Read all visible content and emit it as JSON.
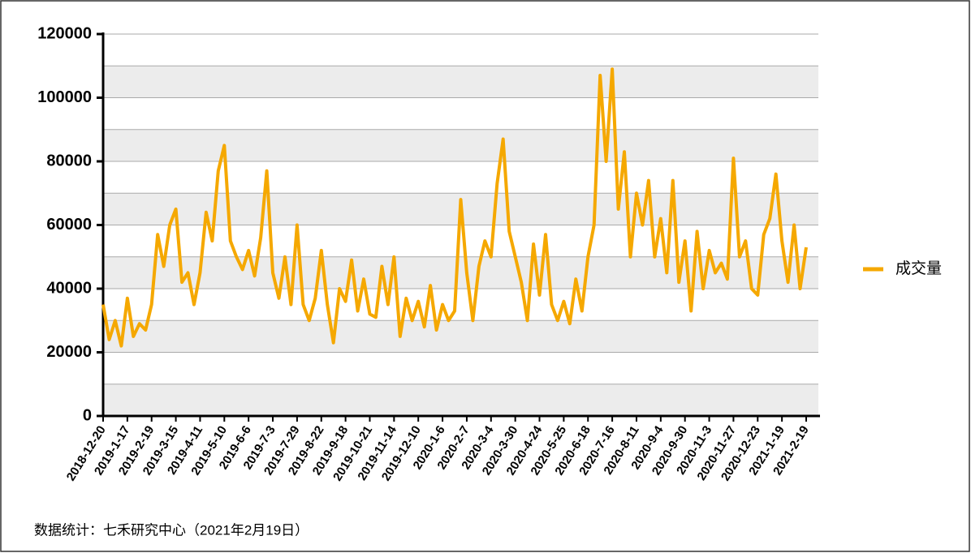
{
  "chart_data": {
    "type": "line",
    "categories": [
      "2018-12-20",
      null,
      null,
      null,
      "2019-1-17",
      null,
      null,
      null,
      "2019-2-19",
      null,
      null,
      null,
      "2019-3-15",
      null,
      null,
      null,
      "2019-4-11",
      null,
      null,
      null,
      "2019-5-10",
      null,
      null,
      null,
      "2019-6-6",
      null,
      null,
      null,
      "2019-7-3",
      null,
      null,
      null,
      "2019-7-29",
      null,
      null,
      null,
      "2019-8-22",
      null,
      null,
      null,
      "2019-9-18",
      null,
      null,
      null,
      "2019-10-21",
      null,
      null,
      null,
      "2019-11-14",
      null,
      null,
      null,
      "2019-12-10",
      null,
      null,
      null,
      "2020-1-6",
      null,
      null,
      null,
      "2020-2-7",
      null,
      null,
      null,
      "2020-3-4",
      null,
      null,
      null,
      "2020-3-30",
      null,
      null,
      null,
      "2020-4-24",
      null,
      null,
      null,
      "2020-5-25",
      null,
      null,
      null,
      "2020-6-18",
      null,
      null,
      null,
      "2020-7-16",
      null,
      null,
      null,
      "2020-8-11",
      null,
      null,
      null,
      "2020-9-4",
      null,
      null,
      null,
      "2020-9-30",
      null,
      null,
      null,
      "2020-11-3",
      null,
      null,
      null,
      "2020-11-27",
      null,
      null,
      null,
      "2020-12-23",
      null,
      null,
      null,
      "2021-1-19",
      null,
      null,
      null,
      "2021-2-19"
    ],
    "series": [
      {
        "name": "成交量",
        "color": "#f5a800",
        "values": [
          35000,
          24000,
          30000,
          22000,
          37000,
          25000,
          29000,
          27000,
          35000,
          57000,
          47000,
          60000,
          65000,
          42000,
          45000,
          35000,
          45000,
          64000,
          55000,
          77000,
          85000,
          55000,
          50000,
          46000,
          52000,
          44000,
          56000,
          77000,
          45000,
          37000,
          50000,
          35000,
          60000,
          35000,
          30000,
          37000,
          52000,
          35000,
          23000,
          40000,
          36000,
          49000,
          33000,
          43000,
          32000,
          31000,
          47000,
          35000,
          50000,
          25000,
          37000,
          30000,
          36000,
          28000,
          41000,
          27000,
          35000,
          30000,
          33000,
          68000,
          45000,
          30000,
          47000,
          55000,
          50000,
          73000,
          87000,
          58000,
          50000,
          42000,
          30000,
          54000,
          38000,
          57000,
          35000,
          30000,
          36000,
          29000,
          43000,
          33000,
          50000,
          60000,
          107000,
          80000,
          109000,
          65000,
          83000,
          50000,
          70000,
          60000,
          74000,
          50000,
          62000,
          45000,
          74000,
          42000,
          55000,
          33000,
          58000,
          40000,
          52000,
          45000,
          48000,
          43000,
          81000,
          50000,
          55000,
          40000,
          38000,
          57000,
          62000,
          76000,
          55000,
          42000,
          60000,
          40000,
          53000
        ]
      }
    ],
    "ylim": [
      0,
      120000
    ],
    "yticks": [
      0,
      20000,
      40000,
      60000,
      80000,
      100000,
      120000
    ],
    "grid": true,
    "legend": "right"
  },
  "footer": "数据统计：七禾研究中心（2021年2月19日）"
}
